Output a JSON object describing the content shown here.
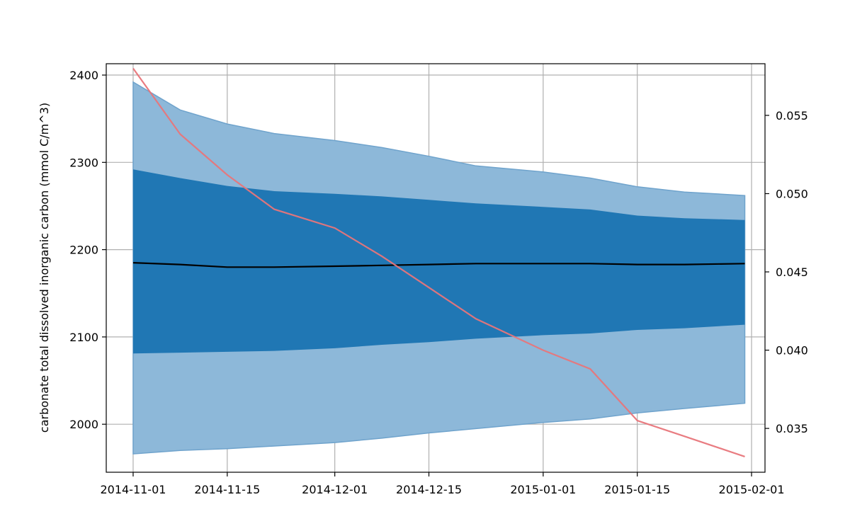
{
  "chart_data": {
    "type": "area",
    "title": "",
    "xlabel": "",
    "ylabel": "carbonate total dissolved inorganic carbon (mmol C/m^3)",
    "y2label": "",
    "grid": true,
    "xlim": [
      "2014-10-28",
      "2015-02-03"
    ],
    "ylim": [
      1945,
      2413
    ],
    "y2lim": [
      0.0322,
      0.0583
    ],
    "x_ticks": [
      "2014-11-01",
      "2014-11-15",
      "2014-12-01",
      "2014-12-15",
      "2015-01-01",
      "2015-01-15",
      "2015-02-01"
    ],
    "y_ticks": [
      2000,
      2100,
      2200,
      2300,
      2400
    ],
    "y2_ticks": [
      0.035,
      0.04,
      0.045,
      0.05,
      0.055
    ],
    "x_tick_labels": [
      "2014-11-01",
      "2014-11-15",
      "2014-12-01",
      "2014-12-15",
      "2015-01-01",
      "2015-01-15",
      "2015-02-01"
    ],
    "y_tick_labels": [
      "2000",
      "2100",
      "2200",
      "2300",
      "2400"
    ],
    "y2_tick_labels": [
      "0.035",
      "0.040",
      "0.045",
      "0.050",
      "0.055"
    ],
    "colors": {
      "outer_band": "#8db8d9",
      "inner_band": "#2077b4",
      "mean_line": "#000000",
      "secondary_line": "#e8757a"
    },
    "x": [
      "2014-11-01",
      "2014-11-08",
      "2014-11-15",
      "2014-11-22",
      "2014-12-01",
      "2014-12-08",
      "2014-12-15",
      "2014-12-22",
      "2015-01-01",
      "2015-01-08",
      "2015-01-15",
      "2015-01-22",
      "2015-01-31"
    ],
    "series": [
      {
        "role": "outer_upper",
        "axis": "left",
        "values": [
          2392,
          2360,
          2344,
          2333,
          2325,
          2317,
          2307,
          2296,
          2289,
          2282,
          2272,
          2266,
          2262
        ]
      },
      {
        "role": "outer_lower",
        "axis": "left",
        "values": [
          1966,
          1970,
          1972,
          1975,
          1979,
          1984,
          1990,
          1995,
          2002,
          2006,
          2013,
          2018,
          2024
        ]
      },
      {
        "role": "inner_upper",
        "axis": "left",
        "values": [
          2292,
          2282,
          2273,
          2267,
          2264,
          2261,
          2257,
          2253,
          2249,
          2246,
          2239,
          2236,
          2234
        ]
      },
      {
        "role": "inner_lower",
        "axis": "left",
        "values": [
          2081,
          2082,
          2083,
          2084,
          2087,
          2091,
          2094,
          2098,
          2102,
          2104,
          2108,
          2110,
          2114
        ]
      },
      {
        "role": "mean",
        "axis": "left",
        "values": [
          2185,
          2183,
          2180,
          2180,
          2181,
          2182,
          2183,
          2184,
          2184,
          2184,
          2183,
          2183,
          2184
        ]
      },
      {
        "role": "secondary",
        "axis": "right",
        "values": [
          0.058,
          0.0538,
          0.0512,
          0.049,
          0.0478,
          0.046,
          0.044,
          0.042,
          0.04,
          0.0388,
          0.0355,
          0.0345,
          0.0332
        ]
      }
    ]
  }
}
